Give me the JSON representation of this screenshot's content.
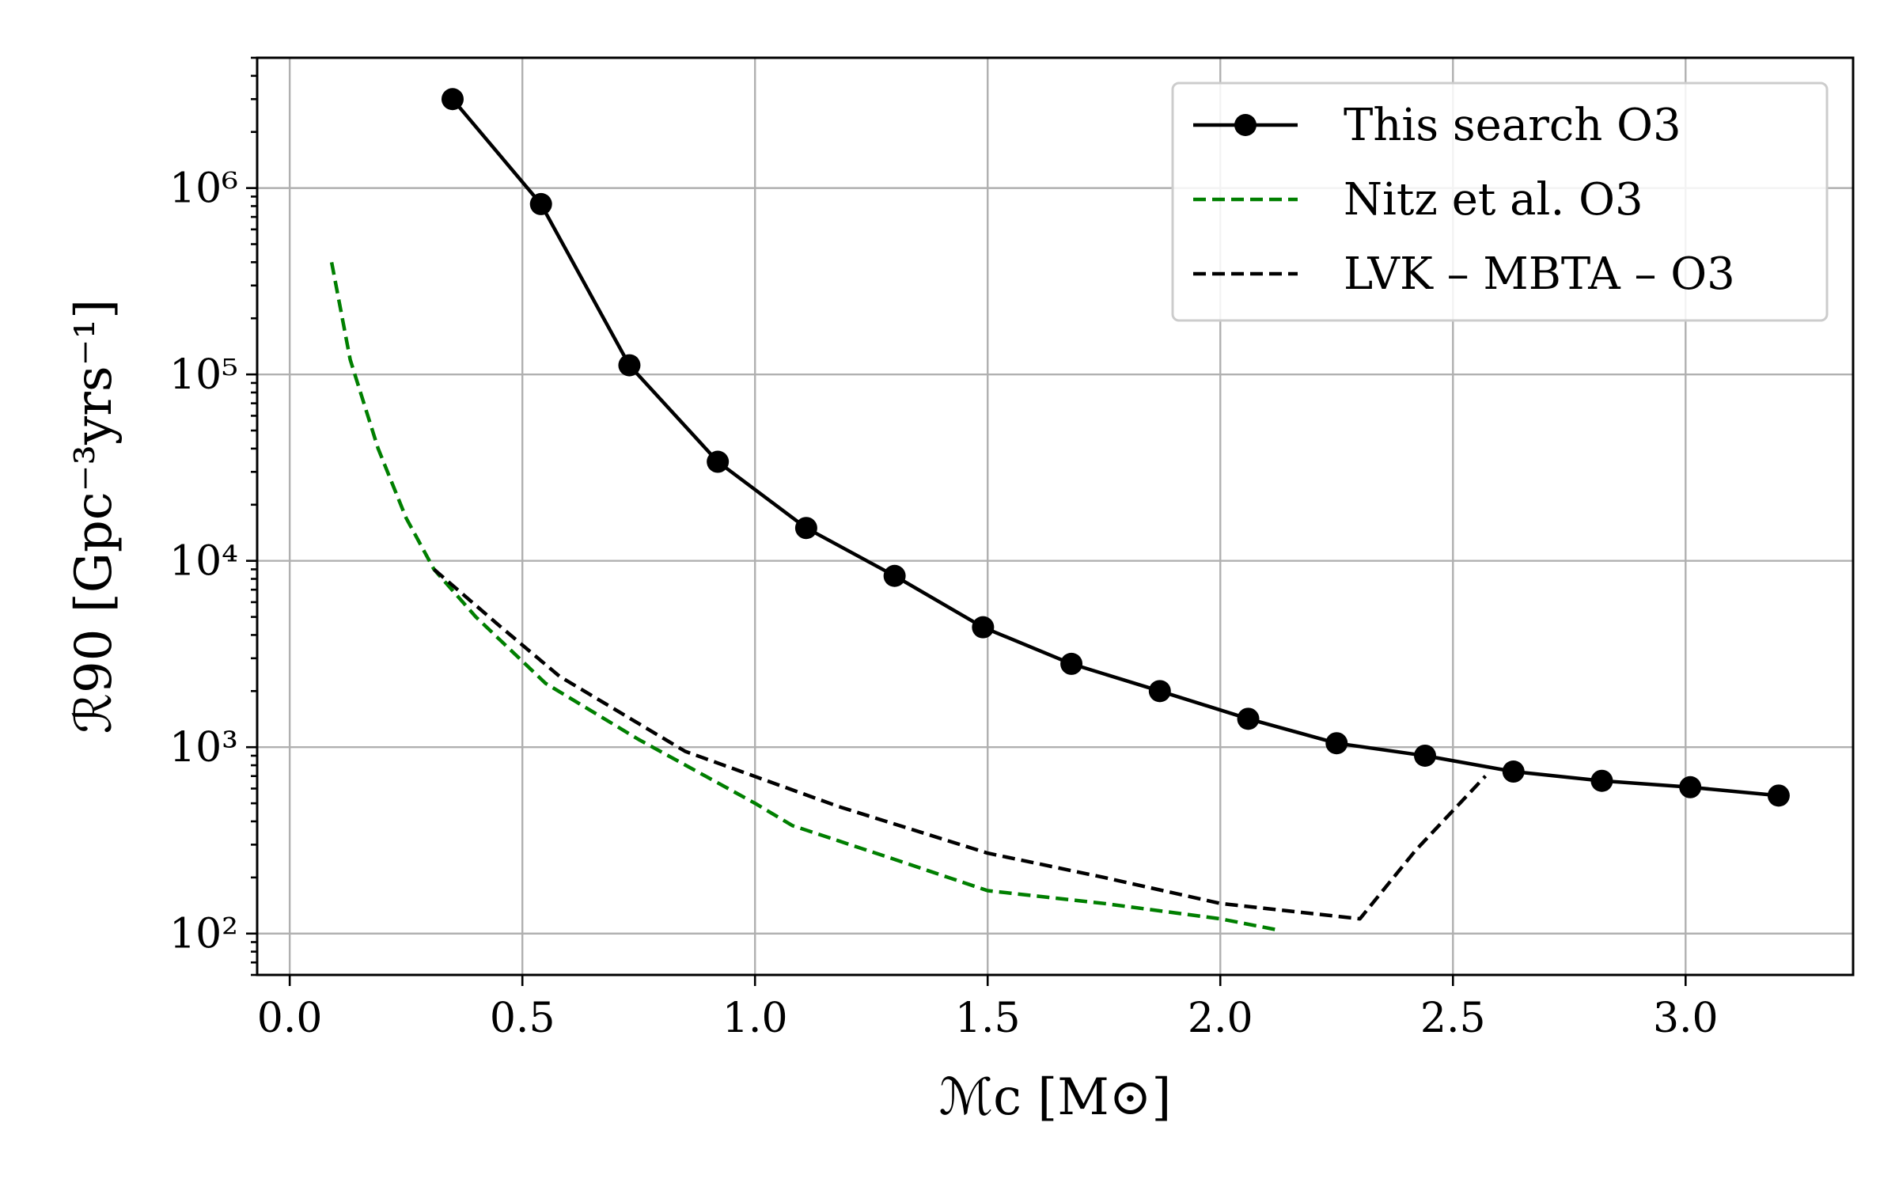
{
  "chart_data": {
    "type": "line",
    "title": "",
    "xlabel": "ℳc [M⊙]",
    "ylabel": "ℛ90 [Gpc⁻³yrs⁻¹]",
    "xlim": [
      -0.07,
      3.36
    ],
    "ylim": [
      60,
      5000000
    ],
    "yscale": "log",
    "grid": true,
    "legend_position": "top-right",
    "x_ticks": [
      "0.0",
      "0.5",
      "1.0",
      "1.5",
      "2.0",
      "2.5",
      "3.0"
    ],
    "y_ticks": [
      "10²",
      "10³",
      "10⁴",
      "10⁵",
      "10⁶"
    ],
    "series": [
      {
        "name": "This search O3",
        "color": "#000000",
        "style": "solid-markers",
        "x": [
          0.35,
          0.54,
          0.73,
          0.92,
          1.11,
          1.3,
          1.49,
          1.68,
          1.87,
          2.06,
          2.25,
          2.44,
          2.63,
          2.82,
          3.01,
          3.2
        ],
        "y": [
          3000000,
          820000,
          112000,
          34000,
          15000,
          8300,
          4400,
          2800,
          2000,
          1420,
          1050,
          900,
          740,
          660,
          610,
          550
        ]
      },
      {
        "name": "Nitz et al. O3",
        "color": "#007f00",
        "style": "dashed",
        "x": [
          0.09,
          0.13,
          0.19,
          0.25,
          0.31,
          0.4,
          0.55,
          0.75,
          1.0,
          1.08,
          1.3,
          1.5,
          1.75,
          2.0,
          2.12
        ],
        "y": [
          400000,
          120000,
          40000,
          17000,
          9000,
          5000,
          2200,
          1100,
          500,
          380,
          250,
          170,
          145,
          120,
          105
        ]
      },
      {
        "name": "LVK – MBTA – O3",
        "color": "#000000",
        "style": "dashed",
        "x": [
          0.31,
          0.45,
          0.58,
          0.85,
          1.18,
          1.5,
          1.75,
          2.0,
          2.3,
          2.42,
          2.57
        ],
        "y": [
          9000,
          4500,
          2400,
          950,
          480,
          270,
          200,
          145,
          120,
          280,
          700
        ]
      }
    ]
  }
}
